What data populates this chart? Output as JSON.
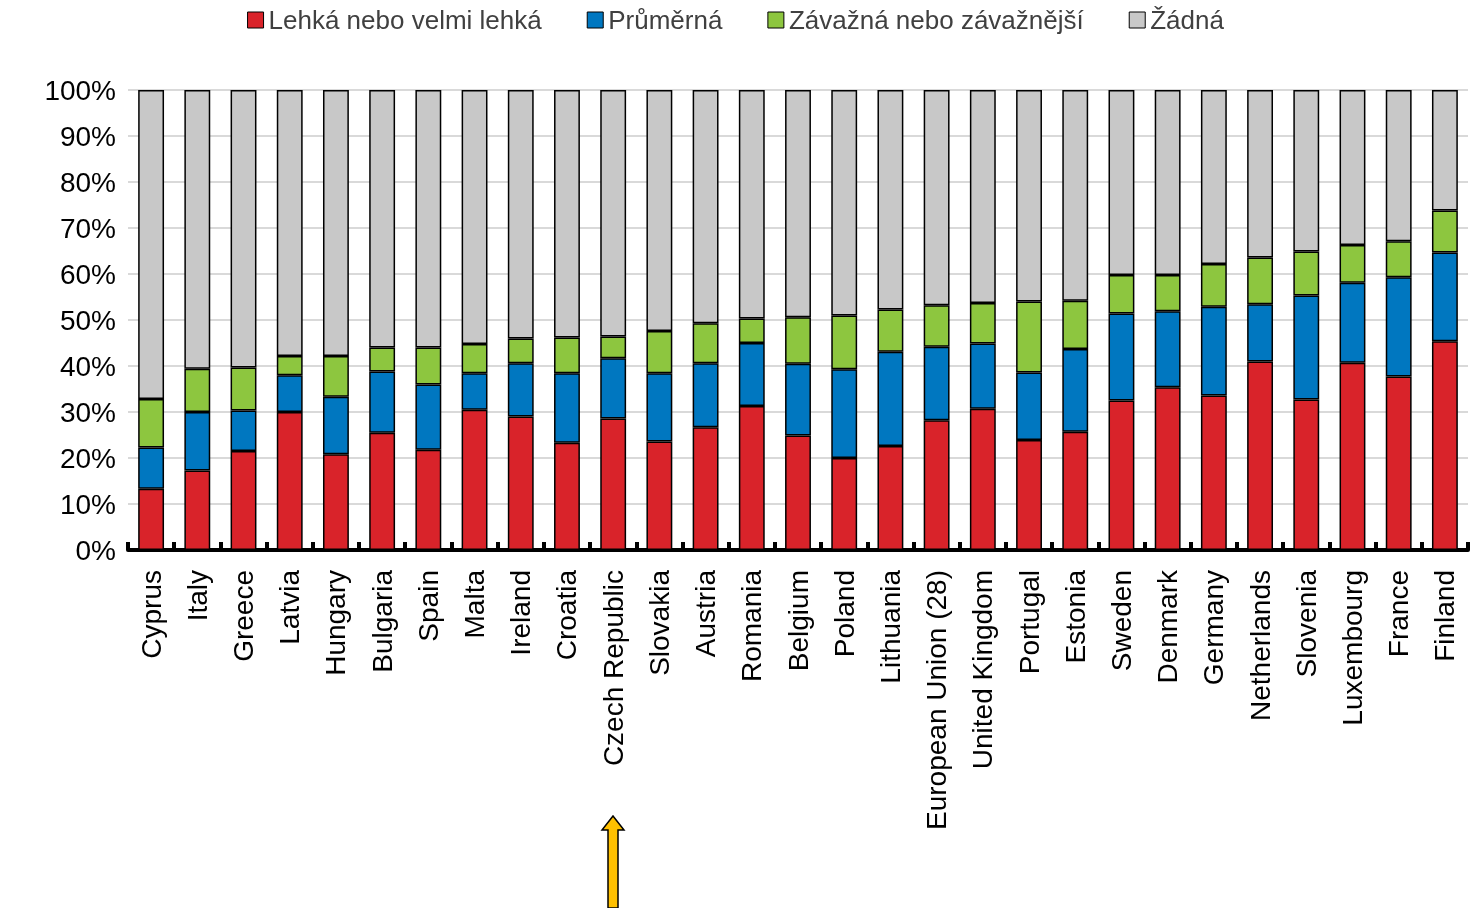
{
  "chart_data": {
    "type": "bar",
    "stacked": true,
    "legend": "top",
    "grid": "y",
    "categories": [
      "Cyprus",
      "Italy",
      "Greece",
      "Latvia",
      "Hungary",
      "Bulgaria",
      "Spain",
      "Malta",
      "Ireland",
      "Croatia",
      "Czech Republic",
      "Slovakia",
      "Austria",
      "Romania",
      "Belgium",
      "Poland",
      "Lithuania",
      "European Union (28)",
      "United Kingdom",
      "Portugal",
      "Estonia",
      "Sweden",
      "Denmark",
      "Germany",
      "Netherlands",
      "Slovenia",
      "Luxembourg",
      "France",
      "Finland"
    ],
    "ylim": [
      0,
      100
    ],
    "yticks": [
      {
        "value": 0,
        "label": "0%"
      },
      {
        "value": 10,
        "label": "10%"
      },
      {
        "value": 20,
        "label": "20%"
      },
      {
        "value": 30,
        "label": "30%"
      },
      {
        "value": 40,
        "label": "40%"
      },
      {
        "value": 50,
        "label": "50%"
      },
      {
        "value": 60,
        "label": "60%"
      },
      {
        "value": 70,
        "label": "70%"
      },
      {
        "value": 80,
        "label": "80%"
      },
      {
        "value": 90,
        "label": "90%"
      },
      {
        "value": 100,
        "label": "100%"
      }
    ],
    "series": [
      {
        "name": "Lehká nebo velmi lehká",
        "color": "#d9232a",
        "values": [
          13.3,
          17.3,
          21.5,
          30,
          20.8,
          25.5,
          21.8,
          30.5,
          29,
          23.3,
          28.6,
          23.6,
          26.7,
          31.3,
          24.9,
          20,
          22.6,
          28.2,
          30.7,
          23.9,
          25.7,
          32.5,
          35.4,
          33.6,
          41,
          32.7,
          40.7,
          37.7,
          45.4
        ]
      },
      {
        "name": "Průměrná",
        "color": "#0077c0",
        "values": [
          9,
          12.7,
          8.8,
          8,
          12.5,
          13.3,
          14.2,
          7.9,
          11.6,
          15.1,
          13.1,
          14.8,
          13.9,
          13.7,
          15.6,
          19.3,
          20.5,
          16,
          14.2,
          14.7,
          18,
          18.9,
          16.5,
          19.3,
          12.4,
          22.6,
          17.4,
          21.6,
          19.3
        ]
      },
      {
        "name": "Závažná nebo závažnější",
        "color": "#8dc63f",
        "values": [
          10.5,
          9.4,
          9.4,
          4.2,
          8.9,
          5.2,
          8,
          6.4,
          5.4,
          7.8,
          4.7,
          9.2,
          8.7,
          5.3,
          10.1,
          11.7,
          9.2,
          9,
          8.8,
          15.4,
          10.5,
          8.4,
          7.9,
          9.3,
          10.2,
          9.6,
          8.2,
          7.8,
          9.1
        ]
      },
      {
        "name": "Žádná",
        "color": "#c8c8c8",
        "values": [
          67.2,
          60.6,
          60.3,
          57.8,
          57.8,
          56,
          56,
          55.2,
          54,
          53.8,
          53.6,
          52.4,
          50.7,
          49.7,
          49.4,
          49,
          47.7,
          46.8,
          46.3,
          46,
          45.8,
          40.2,
          40.2,
          37.8,
          36.4,
          35.1,
          33.7,
          32.9,
          26.2
        ]
      }
    ]
  }
}
